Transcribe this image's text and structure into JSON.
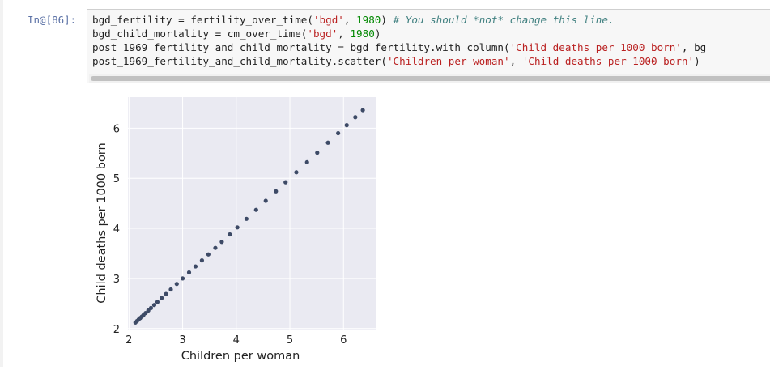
{
  "cell": {
    "prompt": "In@[86]:",
    "lines": [
      [
        {
          "t": "text",
          "v": "bgd_fertility = fertility_over_time("
        },
        {
          "t": "str",
          "v": "'bgd'"
        },
        {
          "t": "text",
          "v": ", "
        },
        {
          "t": "num",
          "v": "1980"
        },
        {
          "t": "text",
          "v": ") "
        },
        {
          "t": "comment",
          "v": "# You should *not* change this line."
        }
      ],
      [
        {
          "t": "text",
          "v": "bgd_child_mortality = cm_over_time("
        },
        {
          "t": "str",
          "v": "'bgd'"
        },
        {
          "t": "text",
          "v": ", "
        },
        {
          "t": "num",
          "v": "1980"
        },
        {
          "t": "text",
          "v": ")"
        }
      ],
      [
        {
          "t": "text",
          "v": "post_1969_fertility_and_child_mortality = bgd_fertility.with_column("
        },
        {
          "t": "str",
          "v": "'Child deaths per 1000 born'"
        },
        {
          "t": "text",
          "v": ", bg"
        }
      ],
      [
        {
          "t": "text",
          "v": "post_1969_fertility_and_child_mortality.scatter("
        },
        {
          "t": "str",
          "v": "'Children per woman'"
        },
        {
          "t": "text",
          "v": ", "
        },
        {
          "t": "str",
          "v": "'Child deaths per 1000 born'"
        },
        {
          "t": "text",
          "v": ")"
        }
      ]
    ]
  },
  "colors": {
    "plot_bg": "#eaeaf2",
    "grid": "#ffffff",
    "point": "#3d4a66",
    "text": "#222222"
  },
  "chart_data": {
    "type": "scatter",
    "xlabel": "Children per woman",
    "ylabel": "Child deaths per 1000 born",
    "xlim": [
      1.98,
      6.6
    ],
    "ylim": [
      1.98,
      6.62
    ],
    "xticks": [
      2,
      3,
      4,
      5,
      6
    ],
    "yticks": [
      2,
      3,
      4,
      5,
      6
    ],
    "grid": true,
    "x": [
      2.12,
      2.15,
      2.18,
      2.21,
      2.24,
      2.27,
      2.31,
      2.36,
      2.41,
      2.47,
      2.53,
      2.61,
      2.69,
      2.78,
      2.89,
      3.0,
      3.12,
      3.24,
      3.36,
      3.48,
      3.61,
      3.73,
      3.88,
      4.02,
      4.19,
      4.37,
      4.55,
      4.74,
      4.92,
      5.12,
      5.32,
      5.51,
      5.71,
      5.9,
      6.06,
      6.22,
      6.36
    ],
    "y": [
      2.12,
      2.15,
      2.18,
      2.21,
      2.24,
      2.27,
      2.31,
      2.36,
      2.41,
      2.47,
      2.53,
      2.61,
      2.69,
      2.78,
      2.89,
      3.0,
      3.12,
      3.24,
      3.36,
      3.48,
      3.61,
      3.73,
      3.88,
      4.02,
      4.19,
      4.37,
      4.55,
      4.74,
      4.92,
      5.12,
      5.32,
      5.51,
      5.71,
      5.9,
      6.06,
      6.22,
      6.36
    ]
  }
}
